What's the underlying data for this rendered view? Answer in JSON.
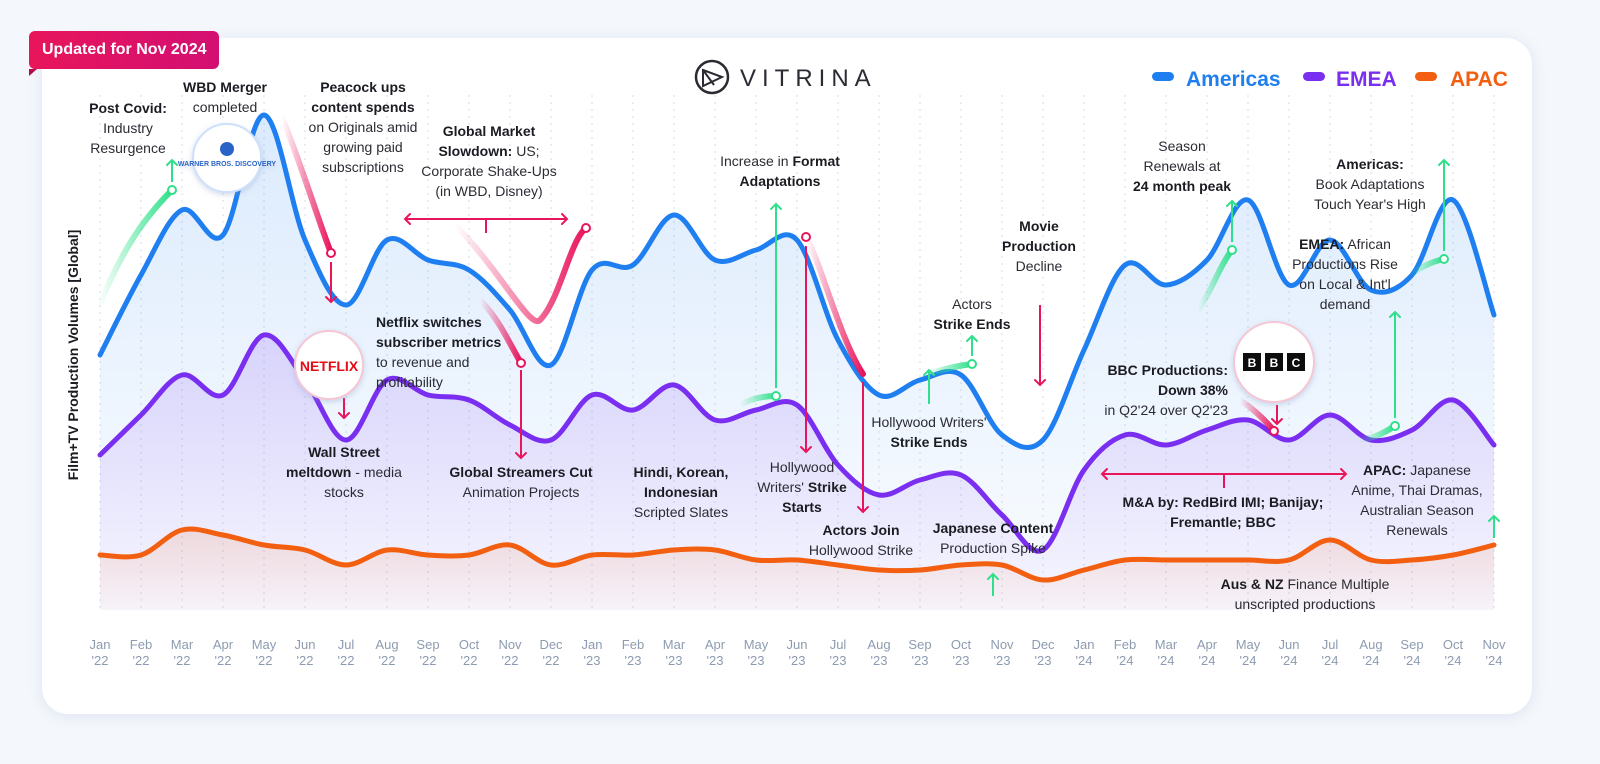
{
  "badge": "Updated for Nov 2024",
  "brand": "VITRINA",
  "logos": {
    "wbd": "WARNER BROS. DISCOVERY",
    "netflix": "NETFLIX",
    "bbc": [
      "B",
      "B",
      "C"
    ]
  },
  "colors": {
    "americas": "#1f7ff0",
    "emea": "#7a2ff0",
    "apac": "#f25f10",
    "accent": "#e8155a",
    "up": "#2fe08a"
  },
  "chart_data": {
    "type": "line",
    "title": "",
    "ylabel": "Film+TV Production Volumes [Global]",
    "xlabel": "",
    "ylim": [
      0,
      100
    ],
    "grid": "vertical dotted",
    "legend": "top-right",
    "categories": [
      "Jan '22",
      "Feb '22",
      "Mar '22",
      "Apr '22",
      "May '22",
      "Jun '22",
      "Jul '22",
      "Aug '22",
      "Sep '22",
      "Oct '22",
      "Nov '22",
      "Dec '22",
      "Jan '23",
      "Feb '23",
      "Mar '23",
      "Apr '23",
      "May '23",
      "Jun '23",
      "Jul '23",
      "Aug '23",
      "Sep '23",
      "Oct '23",
      "Nov '23",
      "Dec '23",
      "Jan '24",
      "Feb '24",
      "Mar '24",
      "Apr '24",
      "May '24",
      "Jun '24",
      "Jul '24",
      "Aug '24",
      "Sep '24",
      "Oct '24",
      "Nov '24"
    ],
    "ticks": [
      [
        "Jan",
        "'22"
      ],
      [
        "Feb",
        "'22"
      ],
      [
        "Mar",
        "'22"
      ],
      [
        "Apr",
        "'22"
      ],
      [
        "May",
        "'22"
      ],
      [
        "Jun",
        "'22"
      ],
      [
        "Jul",
        "'22"
      ],
      [
        "Aug",
        "'22"
      ],
      [
        "Sep",
        "'22"
      ],
      [
        "Oct",
        "'22"
      ],
      [
        "Nov",
        "'22"
      ],
      [
        "Dec",
        "'22"
      ],
      [
        "Jan",
        "'23"
      ],
      [
        "Feb",
        "'23"
      ],
      [
        "Mar",
        "'23"
      ],
      [
        "Apr",
        "'23"
      ],
      [
        "May",
        "'23"
      ],
      [
        "Jun",
        "'23"
      ],
      [
        "Jul",
        "'23"
      ],
      [
        "Aug",
        "'23"
      ],
      [
        "Sep",
        "'23"
      ],
      [
        "Oct",
        "'23"
      ],
      [
        "Nov",
        "'23"
      ],
      [
        "Dec",
        "'23"
      ],
      [
        "Jan",
        "'24"
      ],
      [
        "Feb",
        "'24"
      ],
      [
        "Mar",
        "'24"
      ],
      [
        "Apr",
        "'24"
      ],
      [
        "May",
        "'24"
      ],
      [
        "Jun",
        "'24"
      ],
      [
        "Jul",
        "'24"
      ],
      [
        "Aug",
        "'24"
      ],
      [
        "Sep",
        "'24"
      ],
      [
        "Oct",
        "'24"
      ],
      [
        "Nov",
        "'24"
      ]
    ],
    "series": [
      {
        "name": "Americas",
        "values": [
          51,
          67,
          80,
          75,
          99,
          74,
          61,
          74,
          70,
          68,
          60,
          49,
          68,
          69,
          79,
          70,
          72,
          74,
          54,
          43,
          46,
          47,
          35,
          34,
          52,
          69,
          65,
          70,
          82,
          65,
          74,
          64,
          67,
          82,
          59
        ]
      },
      {
        "name": "EMEA",
        "values": [
          31,
          39,
          47,
          43,
          55,
          46,
          34,
          46,
          43,
          42,
          37,
          34,
          43,
          40,
          45,
          38,
          40,
          41,
          29,
          23,
          26,
          27,
          19,
          12,
          28,
          35,
          33,
          36,
          38,
          34,
          39,
          34,
          36,
          42,
          33
        ]
      },
      {
        "name": "APAC",
        "values": [
          11,
          11,
          16,
          15,
          13,
          12,
          9,
          12,
          11,
          11,
          13,
          9,
          11,
          11,
          12,
          12,
          10,
          10,
          9,
          8,
          8,
          9,
          9,
          6,
          8,
          10,
          10,
          10,
          10,
          10,
          14,
          10,
          10,
          11,
          13
        ]
      }
    ],
    "annotations": [
      {
        "lines": [
          [
            {
              "t": "Post Covid:",
              "b": true
            }
          ],
          [
            {
              "t": "Industry"
            }
          ],
          [
            {
              "t": "Resurgence"
            }
          ]
        ]
      },
      {
        "lines": [
          [
            {
              "t": "WBD Merger",
              "b": true
            }
          ],
          [
            {
              "t": "completed"
            }
          ]
        ]
      },
      {
        "lines": [
          [
            {
              "t": "Peacock ups",
              "b": true
            }
          ],
          [
            {
              "t": "content spends",
              "b": true
            }
          ],
          [
            {
              "t": "on Originals amid"
            }
          ],
          [
            {
              "t": "growing paid"
            }
          ],
          [
            {
              "t": "subscriptions"
            }
          ]
        ]
      },
      {
        "lines": [
          [
            {
              "t": "Global Market",
              "b": true
            }
          ],
          [
            {
              "t": "Slowdown:",
              "b": true
            },
            {
              "t": " US;"
            }
          ],
          [
            {
              "t": "Corporate Shake-Ups"
            }
          ],
          [
            {
              "t": "(in WBD, Disney)"
            }
          ]
        ]
      },
      {
        "lines": [
          [
            {
              "t": "Netflix switches",
              "b": true
            }
          ],
          [
            {
              "t": "subscriber metrics",
              "b": true
            }
          ],
          [
            {
              "t": "to revenue and"
            }
          ],
          [
            {
              "t": "profitability"
            }
          ]
        ]
      },
      {
        "lines": [
          [
            {
              "t": "Wall Street",
              "b": true
            }
          ],
          [
            {
              "t": "meltdown",
              "b": true
            },
            {
              "t": " - media"
            }
          ],
          [
            {
              "t": "stocks"
            }
          ]
        ]
      },
      {
        "lines": [
          [
            {
              "t": "Global Streamers Cut",
              "b": true
            }
          ],
          [
            {
              "t": "Animation Projects"
            }
          ]
        ]
      },
      {
        "lines": [
          [
            {
              "t": "Hindi, Korean,",
              "b": true
            }
          ],
          [
            {
              "t": "Indonesian",
              "b": true
            }
          ],
          [
            {
              "t": "Scripted Slates"
            }
          ]
        ]
      },
      {
        "lines": [
          [
            {
              "t": "Increase in "
            },
            {
              "t": "Format",
              "b": true
            }
          ],
          [
            {
              "t": "Adaptations",
              "b": true
            }
          ]
        ]
      },
      {
        "lines": [
          [
            {
              "t": "Hollywood"
            }
          ],
          [
            {
              "t": "Writers' "
            },
            {
              "t": "Strike",
              "b": true
            }
          ],
          [
            {
              "t": "Starts",
              "b": true
            }
          ]
        ]
      },
      {
        "lines": [
          [
            {
              "t": "Actors Join",
              "b": true
            }
          ],
          [
            {
              "t": "Hollywood Strike"
            }
          ]
        ]
      },
      {
        "lines": [
          [
            {
              "t": "Hollywood Writers'"
            }
          ],
          [
            {
              "t": "Strike Ends",
              "b": true
            }
          ]
        ]
      },
      {
        "lines": [
          [
            {
              "t": "Actors"
            }
          ],
          [
            {
              "t": "Strike Ends",
              "b": true
            }
          ]
        ]
      },
      {
        "lines": [
          [
            {
              "t": "Movie",
              "b": true
            }
          ],
          [
            {
              "t": "Production",
              "b": true
            }
          ],
          [
            {
              "t": "Decline"
            }
          ]
        ]
      },
      {
        "lines": [
          [
            {
              "t": "Japanese Content",
              "b": true
            }
          ],
          [
            {
              "t": "Production Spike"
            }
          ]
        ]
      },
      {
        "lines": [
          [
            {
              "t": "Season"
            }
          ],
          [
            {
              "t": "Renewals at"
            }
          ],
          [
            {
              "t": "24 month peak",
              "b": true
            }
          ]
        ]
      },
      {
        "lines": [
          [
            {
              "t": "BBC Productions:",
              "b": true
            }
          ],
          [
            {
              "t": "Down 38%",
              "b": true
            }
          ],
          [
            {
              "t": "in Q2'24 over Q2'23"
            }
          ]
        ]
      },
      {
        "lines": [
          [
            {
              "t": "M&A by: RedBird IMI; Banijay;",
              "b": true
            }
          ],
          [
            {
              "t": "Fremantle; BBC",
              "b": true
            }
          ]
        ]
      },
      {
        "lines": [
          [
            {
              "t": "Aus & NZ",
              "b": true
            },
            {
              "t": " Finance Multiple"
            }
          ],
          [
            {
              "t": "unscripted productions"
            }
          ]
        ]
      },
      {
        "lines": [
          [
            {
              "t": "Americas:",
              "b": true
            }
          ],
          [
            {
              "t": "Book Adaptations"
            }
          ],
          [
            {
              "t": "Touch Year's High"
            }
          ]
        ]
      },
      {
        "lines": [
          [
            {
              "t": "EMEA:",
              "b": true
            },
            {
              "t": " African"
            }
          ],
          [
            {
              "t": "Productions Rise"
            }
          ],
          [
            {
              "t": "on  Local & Int'l"
            }
          ],
          [
            {
              "t": "demand"
            }
          ]
        ]
      },
      {
        "lines": [
          [
            {
              "t": "APAC:",
              "b": true
            },
            {
              "t": " Japanese"
            }
          ],
          [
            {
              "t": "Anime, Thai Dramas,"
            }
          ],
          [
            {
              "t": "Australian Season"
            }
          ],
          [
            {
              "t": "Renewals"
            }
          ]
        ]
      }
    ]
  }
}
